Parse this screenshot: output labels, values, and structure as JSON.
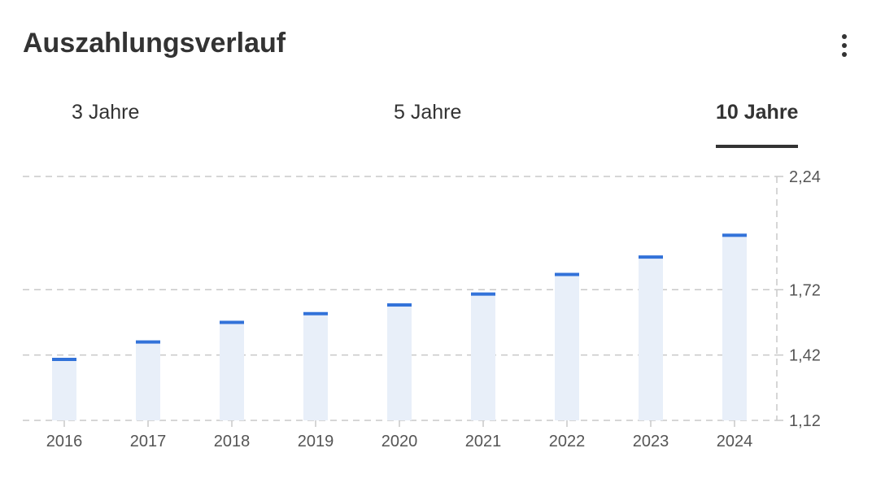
{
  "header": {
    "title": "Auszahlungsverlauf",
    "menu_icon": "more-vertical-icon"
  },
  "tabs": [
    {
      "label": "3 Jahre",
      "active": false
    },
    {
      "label": "5 Jahre",
      "active": false
    },
    {
      "label": "10 Jahre",
      "active": true
    }
  ],
  "colors": {
    "bar_fill": "#e8eff9",
    "value_marker": "#3272d9",
    "grid": "#c8c8c8",
    "text": "#333333",
    "tick_text": "#555555"
  },
  "chart_data": {
    "type": "bar",
    "categories": [
      "2016",
      "2017",
      "2018",
      "2019",
      "2020",
      "2021",
      "2022",
      "2023",
      "2024"
    ],
    "values": [
      1.4,
      1.48,
      1.57,
      1.61,
      1.65,
      1.7,
      1.79,
      1.87,
      1.97
    ],
    "ylim": [
      1.12,
      2.24
    ],
    "yticks": [
      1.12,
      1.42,
      1.72,
      2.24
    ],
    "ytick_labels": [
      "1,12",
      "1,42",
      "1,72",
      "2,24"
    ],
    "grid": true,
    "y_axis_position": "right"
  }
}
